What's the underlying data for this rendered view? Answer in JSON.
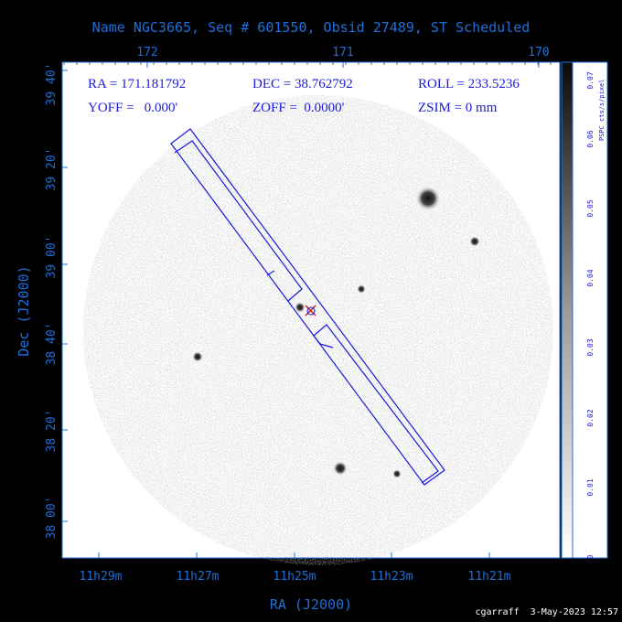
{
  "title": "Name NGC3665, Seq # 601550, Obsid 27489, ST Scheduled",
  "info": {
    "ra": "RA = 171.181792",
    "dec": "DEC = 38.762792",
    "roll": "ROLL = 233.5236",
    "yoff": "YOFF =   0.000'",
    "zoff": "ZOFF =  0.0000'",
    "zsim": "ZSIM = 0 mm"
  },
  "top_axis_ticks": [
    "172",
    "171",
    "170"
  ],
  "left_axis_ticks": [
    "39 40'",
    "39 20'",
    "39 00'",
    "38 40'",
    "38 20'",
    "38 00'"
  ],
  "bottom_axis_ticks": [
    "11h29m",
    "11h27m",
    "11h25m",
    "11h23m",
    "11h21m"
  ],
  "x_axis_label": "RA (J2000)",
  "y_axis_label": "Dec (J2000)",
  "colorbar": {
    "label": "PSPC cts/s/pixel",
    "ticks": [
      "0",
      "0.01",
      "0.02",
      "0.03",
      "0.04",
      "0.05",
      "0.06",
      "0.07"
    ]
  },
  "footer": "cgarraff  3-May-2023 12:57",
  "colors": {
    "label_blue": "#1e6fd9",
    "overlay_blue": "#1a1adb",
    "marker_red": "#cc1a1a"
  }
}
